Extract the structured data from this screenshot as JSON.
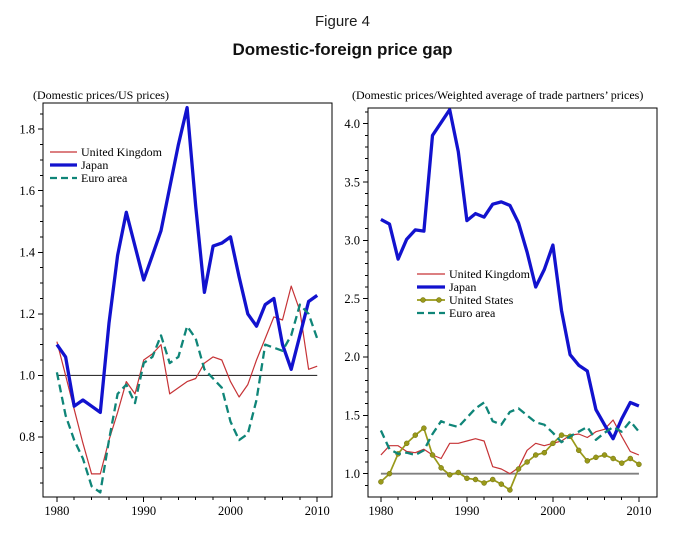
{
  "header": {
    "figure_label": "Figure 4",
    "title": "Domestic-foreign price gap"
  },
  "chart_data": [
    {
      "type": "line",
      "name": "left",
      "title": "(Domestic prices/US prices)",
      "xlim": [
        1978.4,
        2011.7
      ],
      "ylim": [
        0.605,
        1.885
      ],
      "xticks": [
        1980,
        1990,
        2000,
        2010
      ],
      "yticks": [
        0.8,
        1.0,
        1.2,
        1.4,
        1.6,
        1.8
      ],
      "x_minor_step": 2,
      "y_minor_step": 0.05,
      "grid": false,
      "legend_position": "upper-left",
      "reference_line": {
        "value": 1.0,
        "color": "#333333",
        "width": 1.1
      },
      "years": [
        1980,
        1981,
        1982,
        1983,
        1984,
        1985,
        1986,
        1987,
        1988,
        1989,
        1990,
        1991,
        1992,
        1993,
        1994,
        1995,
        1996,
        1997,
        1998,
        1999,
        2000,
        2001,
        2002,
        2003,
        2004,
        2005,
        2006,
        2007,
        2008,
        2009,
        2010
      ],
      "series": [
        {
          "name": "United Kingdom",
          "color": "#C63336",
          "style": "solid",
          "width": 1.2,
          "markers": false,
          "values": [
            1.11,
            1.0,
            0.89,
            0.78,
            0.68,
            0.68,
            0.79,
            0.88,
            0.98,
            0.94,
            1.05,
            1.07,
            1.1,
            0.94,
            0.96,
            0.98,
            0.99,
            1.04,
            1.06,
            1.05,
            0.98,
            0.93,
            0.97,
            1.05,
            1.12,
            1.19,
            1.18,
            1.29,
            1.21,
            1.02,
            1.03
          ]
        },
        {
          "name": "Japan",
          "color": "#1212CE",
          "style": "solid",
          "width": 3.3,
          "markers": false,
          "values": [
            1.1,
            1.06,
            0.9,
            0.92,
            0.9,
            0.88,
            1.17,
            1.39,
            1.53,
            1.42,
            1.31,
            1.39,
            1.47,
            1.61,
            1.75,
            1.87,
            1.55,
            1.27,
            1.42,
            1.43,
            1.45,
            1.32,
            1.2,
            1.16,
            1.23,
            1.25,
            1.1,
            1.02,
            1.13,
            1.24,
            1.26
          ]
        },
        {
          "name": "Euro area",
          "color": "#0F8578",
          "style": "dashed",
          "width": 2.3,
          "markers": false,
          "values": [
            1.01,
            0.87,
            0.79,
            0.73,
            0.64,
            0.62,
            0.79,
            0.94,
            0.97,
            0.91,
            1.04,
            1.06,
            1.13,
            1.04,
            1.06,
            1.16,
            1.12,
            1.02,
            0.99,
            0.96,
            0.85,
            0.79,
            0.81,
            0.92,
            1.1,
            1.09,
            1.08,
            1.13,
            1.23,
            1.2,
            1.12
          ]
        }
      ]
    },
    {
      "type": "line",
      "name": "right",
      "title": "(Domestic prices/Weighted average of trade partners’ prices)",
      "xlim": [
        1978.5,
        2012.1
      ],
      "ylim": [
        0.8,
        4.135
      ],
      "xticks": [
        1980,
        1990,
        2000,
        2010
      ],
      "yticks": [
        1.0,
        1.5,
        2.0,
        2.5,
        3.0,
        3.5,
        4.0
      ],
      "x_minor_step": 2,
      "y_minor_step": 0.1,
      "grid": false,
      "legend_position": "middle-left",
      "reference_line": {
        "value": 1.0,
        "color": "#808080",
        "width": 1.8
      },
      "years": [
        1980,
        1981,
        1982,
        1983,
        1984,
        1985,
        1986,
        1987,
        1988,
        1989,
        1990,
        1991,
        1992,
        1993,
        1994,
        1995,
        1996,
        1997,
        1998,
        1999,
        2000,
        2001,
        2002,
        2003,
        2004,
        2005,
        2006,
        2007,
        2008,
        2009,
        2010
      ],
      "series": [
        {
          "name": "United Kingdom",
          "color": "#C63336",
          "style": "solid",
          "width": 1.2,
          "markers": false,
          "values": [
            1.16,
            1.24,
            1.24,
            1.19,
            1.18,
            1.21,
            1.16,
            1.13,
            1.26,
            1.26,
            1.28,
            1.3,
            1.28,
            1.06,
            1.04,
            1.0,
            1.05,
            1.2,
            1.26,
            1.24,
            1.26,
            1.28,
            1.33,
            1.34,
            1.31,
            1.36,
            1.38,
            1.46,
            1.32,
            1.19,
            1.16
          ]
        },
        {
          "name": "Japan",
          "color": "#1212CE",
          "style": "solid",
          "width": 3.3,
          "markers": false,
          "values": [
            3.18,
            3.14,
            2.84,
            3.01,
            3.09,
            3.08,
            3.9,
            4.01,
            4.12,
            3.76,
            3.17,
            3.23,
            3.2,
            3.31,
            3.33,
            3.3,
            3.15,
            2.9,
            2.6,
            2.75,
            2.96,
            2.4,
            2.02,
            1.93,
            1.88,
            1.55,
            1.42,
            1.3,
            1.47,
            1.61,
            1.58
          ]
        },
        {
          "name": "United States",
          "color": "#99991A",
          "style": "solid",
          "width": 1.7,
          "markers": true,
          "values": [
            0.93,
            1.0,
            1.17,
            1.26,
            1.33,
            1.39,
            1.16,
            1.05,
            0.99,
            1.01,
            0.96,
            0.95,
            0.92,
            0.95,
            0.91,
            0.86,
            1.04,
            1.1,
            1.16,
            1.18,
            1.26,
            1.33,
            1.32,
            1.2,
            1.11,
            1.14,
            1.16,
            1.13,
            1.09,
            1.13,
            1.08
          ]
        },
        {
          "name": "Euro area",
          "color": "#0F8578",
          "style": "dashed",
          "width": 2.3,
          "markers": false,
          "values": [
            1.37,
            1.21,
            1.17,
            1.18,
            1.16,
            1.2,
            1.34,
            1.45,
            1.42,
            1.4,
            1.48,
            1.56,
            1.61,
            1.45,
            1.42,
            1.53,
            1.56,
            1.5,
            1.44,
            1.42,
            1.35,
            1.27,
            1.32,
            1.36,
            1.4,
            1.29,
            1.35,
            1.4,
            1.36,
            1.45,
            1.36
          ]
        }
      ]
    }
  ]
}
